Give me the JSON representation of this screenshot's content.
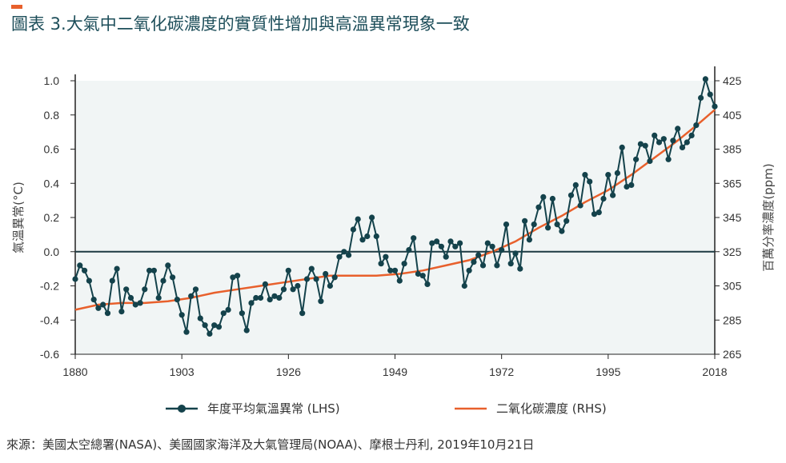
{
  "title": "圖表 3.大氣中二氧化碳濃度的實質性增加與高溫異常現象一致",
  "source": "來源：美國太空總署(NASA)、美國國家海洋及大氣管理局(NOAA)、摩根士丹利, 2019年10月21日",
  "colors": {
    "accent": "#e8602c",
    "title": "#1d4e5a",
    "temp_series": "#14424b",
    "co2_series": "#e8602c",
    "plot_bg": "#f1f5f5"
  },
  "chart_data": {
    "type": "line",
    "title": "圖表 3.大氣中二氧化碳濃度的實質性增加與高溫異常現象一致",
    "ylabel": "氣溫異常(°C)",
    "y2label": "百萬分率濃度(ppm)",
    "xlim": [
      1880,
      2018
    ],
    "ylim": [
      -0.6,
      1.0
    ],
    "y2lim": [
      265,
      425
    ],
    "xticks": [
      "1880",
      "1903",
      "1926",
      "1949",
      "1972",
      "1995",
      "2018"
    ],
    "yticks": [
      "1.0",
      "0.8",
      "0.6",
      "0.4",
      "0.2",
      "0.0",
      "-0.2",
      "-0.4",
      "-0.6"
    ],
    "y2ticks": [
      "425",
      "405",
      "385",
      "365",
      "345",
      "325",
      "305",
      "285",
      "265"
    ],
    "legend": "bottom",
    "series": [
      {
        "name": "年度平均氣溫異常 (LHS)",
        "axis": "left",
        "marker": "circle",
        "x": [
          1880,
          1881,
          1882,
          1883,
          1884,
          1885,
          1886,
          1887,
          1888,
          1889,
          1890,
          1891,
          1892,
          1893,
          1894,
          1895,
          1896,
          1897,
          1898,
          1899,
          1900,
          1901,
          1902,
          1903,
          1904,
          1905,
          1906,
          1907,
          1908,
          1909,
          1910,
          1911,
          1912,
          1913,
          1914,
          1915,
          1916,
          1917,
          1918,
          1919,
          1920,
          1921,
          1922,
          1923,
          1924,
          1925,
          1926,
          1927,
          1928,
          1929,
          1930,
          1931,
          1932,
          1933,
          1934,
          1935,
          1936,
          1937,
          1938,
          1939,
          1940,
          1941,
          1942,
          1943,
          1944,
          1945,
          1946,
          1947,
          1948,
          1949,
          1950,
          1951,
          1952,
          1953,
          1954,
          1955,
          1956,
          1957,
          1958,
          1959,
          1960,
          1961,
          1962,
          1963,
          1964,
          1965,
          1966,
          1967,
          1968,
          1969,
          1970,
          1971,
          1972,
          1973,
          1974,
          1975,
          1976,
          1977,
          1978,
          1979,
          1980,
          1981,
          1982,
          1983,
          1984,
          1985,
          1986,
          1987,
          1988,
          1989,
          1990,
          1991,
          1992,
          1993,
          1994,
          1995,
          1996,
          1997,
          1998,
          1999,
          2000,
          2001,
          2002,
          2003,
          2004,
          2005,
          2006,
          2007,
          2008,
          2009,
          2010,
          2011,
          2012,
          2013,
          2014,
          2015,
          2016,
          2017,
          2018
        ],
        "y": [
          -0.16,
          -0.08,
          -0.11,
          -0.17,
          -0.28,
          -0.33,
          -0.31,
          -0.36,
          -0.17,
          -0.1,
          -0.35,
          -0.22,
          -0.27,
          -0.31,
          -0.3,
          -0.22,
          -0.11,
          -0.11,
          -0.27,
          -0.17,
          -0.08,
          -0.15,
          -0.28,
          -0.37,
          -0.47,
          -0.26,
          -0.22,
          -0.39,
          -0.43,
          -0.48,
          -0.43,
          -0.44,
          -0.36,
          -0.34,
          -0.15,
          -0.14,
          -0.36,
          -0.46,
          -0.3,
          -0.27,
          -0.27,
          -0.19,
          -0.28,
          -0.26,
          -0.27,
          -0.22,
          -0.11,
          -0.22,
          -0.2,
          -0.36,
          -0.16,
          -0.1,
          -0.16,
          -0.29,
          -0.13,
          -0.2,
          -0.15,
          -0.03,
          0.0,
          -0.02,
          0.13,
          0.19,
          0.07,
          0.09,
          0.2,
          0.09,
          -0.07,
          -0.03,
          -0.11,
          -0.11,
          -0.17,
          -0.07,
          0.01,
          0.08,
          -0.13,
          -0.14,
          -0.19,
          0.05,
          0.06,
          0.03,
          -0.03,
          0.06,
          0.03,
          0.05,
          -0.2,
          -0.11,
          -0.06,
          -0.02,
          -0.08,
          0.05,
          0.03,
          -0.08,
          0.01,
          0.16,
          -0.07,
          -0.01,
          -0.1,
          0.18,
          0.07,
          0.16,
          0.26,
          0.32,
          0.14,
          0.31,
          0.16,
          0.12,
          0.18,
          0.33,
          0.39,
          0.27,
          0.45,
          0.41,
          0.22,
          0.23,
          0.31,
          0.45,
          0.33,
          0.46,
          0.61,
          0.38,
          0.39,
          0.54,
          0.63,
          0.62,
          0.53,
          0.68,
          0.64,
          0.66,
          0.54,
          0.65,
          0.72,
          0.61,
          0.64,
          0.68,
          0.74,
          0.9,
          1.01,
          0.92,
          0.85
        ]
      },
      {
        "name": "二氧化碳濃度 (RHS)",
        "axis": "right",
        "marker": "none",
        "x": [
          1880,
          1885,
          1890,
          1895,
          1900,
          1905,
          1910,
          1915,
          1920,
          1925,
          1930,
          1935,
          1940,
          1945,
          1950,
          1955,
          1960,
          1965,
          1970,
          1975,
          1980,
          1985,
          1990,
          1995,
          2000,
          2005,
          2010,
          2015,
          2018
        ],
        "y": [
          291,
          294,
          295,
          295,
          296,
          298,
          301,
          303,
          305,
          307,
          309,
          311,
          311,
          311,
          312,
          314,
          317,
          320,
          325,
          331,
          339,
          346,
          354,
          361,
          370,
          380,
          390,
          401,
          408
        ]
      }
    ]
  }
}
